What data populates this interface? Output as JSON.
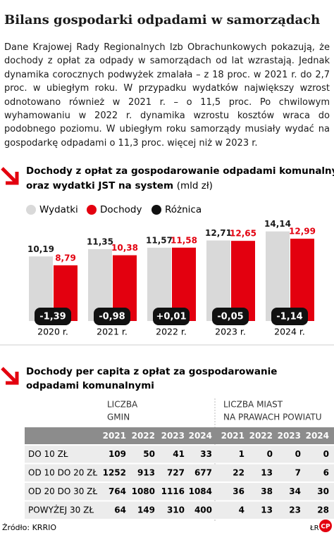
{
  "title": "Bilans gospodarki odpadami w samorządach",
  "intro": "Dane Krajowej Rady Regionalnych Izb Obrachunkowych pokazują, że dochody z opłat za odpady w samorządach od lat wzrastają. Jednak dynamika corocznych podwyżek zmalała – z 18 proc. w 2021 r. do 2,7 proc. w ubiegłym roku. W przypadku wydatków największy wzrost odnotowano również w 2021 r. – o 11,5 proc. Po chwilowym wyhamowaniu w 2022 r. dynamika wzrostu kosztów wraca do podobnego poziomu. W ubiegłym roku samorządy musiały wydać na gospodarkę odpadami o 11,3 proc. więcej niż w 2023 r.",
  "chart_data": {
    "type": "bar",
    "title_lines": [
      "Dochody z opłat za gospodarowanie odpadami komunalnymi",
      "oraz wydatki JST na system"
    ],
    "unit": "(mld zł)",
    "categories": [
      "2020 r.",
      "2021 r.",
      "2022 r.",
      "2023 r.",
      "2024 r."
    ],
    "series": [
      {
        "name": "Wydatki",
        "color": "#d9d9d9",
        "values": [
          10.19,
          11.35,
          11.57,
          12.71,
          14.14
        ],
        "value_labels": [
          "10,19",
          "11,35",
          "11,57",
          "12,71",
          "14,14"
        ]
      },
      {
        "name": "Dochody",
        "color": "#e3000f",
        "values": [
          8.79,
          10.38,
          11.58,
          12.65,
          12.99
        ],
        "value_labels": [
          "8,79",
          "10,38",
          "11,58",
          "12,65",
          "12,99"
        ]
      },
      {
        "name": "Różnica",
        "color": "#111111",
        "values": [
          -1.39,
          -0.98,
          0.01,
          -0.05,
          -1.14
        ],
        "value_labels": [
          "-1,39",
          "-0,98",
          "+0,01",
          "-0,05",
          "-1,14"
        ]
      }
    ]
  },
  "table": {
    "title_lines": [
      "Dochody per capita z opłat za gospodarowanie",
      "odpadami komunalnymi"
    ],
    "groups": [
      [
        "LICZBA",
        "GMIN"
      ],
      [
        "LICZBA MIAST",
        "NA PRAWACH POWIATU"
      ]
    ],
    "columns": [
      2021,
      2022,
      2023,
      2024,
      2021,
      2022,
      2023,
      2024
    ],
    "rows": [
      [
        "DO 10 ZŁ",
        109,
        50,
        41,
        33,
        1,
        0,
        0,
        0
      ],
      [
        "OD 10 DO 20 ZŁ",
        1252,
        913,
        727,
        677,
        22,
        13,
        7,
        6
      ],
      [
        "OD 20 DO 30 ZŁ",
        764,
        1080,
        1116,
        1084,
        36,
        38,
        34,
        30
      ],
      [
        "POWYŻEJ 30 ZŁ",
        64,
        149,
        310,
        400,
        4,
        13,
        23,
        28
      ]
    ]
  },
  "source": "Źródło: KRRIO",
  "author": "ŁR",
  "logo": "CP"
}
